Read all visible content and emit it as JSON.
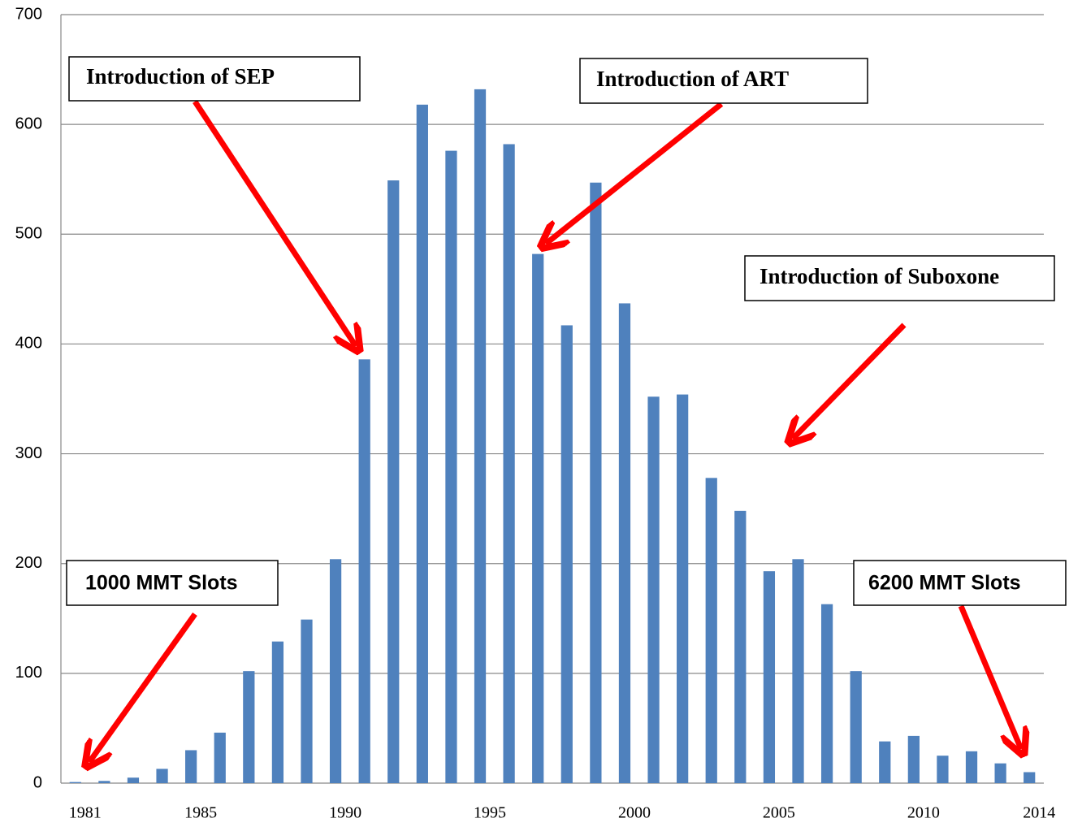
{
  "chart_data": {
    "type": "bar",
    "categories": [
      "1981",
      null,
      null,
      null,
      "1985",
      null,
      null,
      null,
      null,
      "1990",
      null,
      null,
      null,
      null,
      "1995",
      null,
      null,
      null,
      null,
      "2000",
      null,
      null,
      null,
      null,
      "2005",
      null,
      null,
      null,
      null,
      "2010",
      null,
      null,
      null,
      "2014"
    ],
    "values": [
      1,
      2,
      5,
      13,
      30,
      46,
      102,
      129,
      149,
      204,
      386,
      549,
      618,
      576,
      632,
      582,
      482,
      417,
      547,
      437,
      352,
      354,
      278,
      248,
      193,
      204,
      163,
      102,
      38,
      43,
      25,
      29,
      18,
      10
    ],
    "color": "#4f81bd",
    "ylim": [
      0,
      700
    ],
    "yticks": [
      0,
      100,
      200,
      300,
      400,
      500,
      600,
      700
    ],
    "grid": true,
    "annotations": [
      "Introduction of SEP",
      "Introduction of ART",
      "Introduction of Suboxone",
      "1000 MMT Slots",
      "6200 MMT Slots"
    ]
  }
}
